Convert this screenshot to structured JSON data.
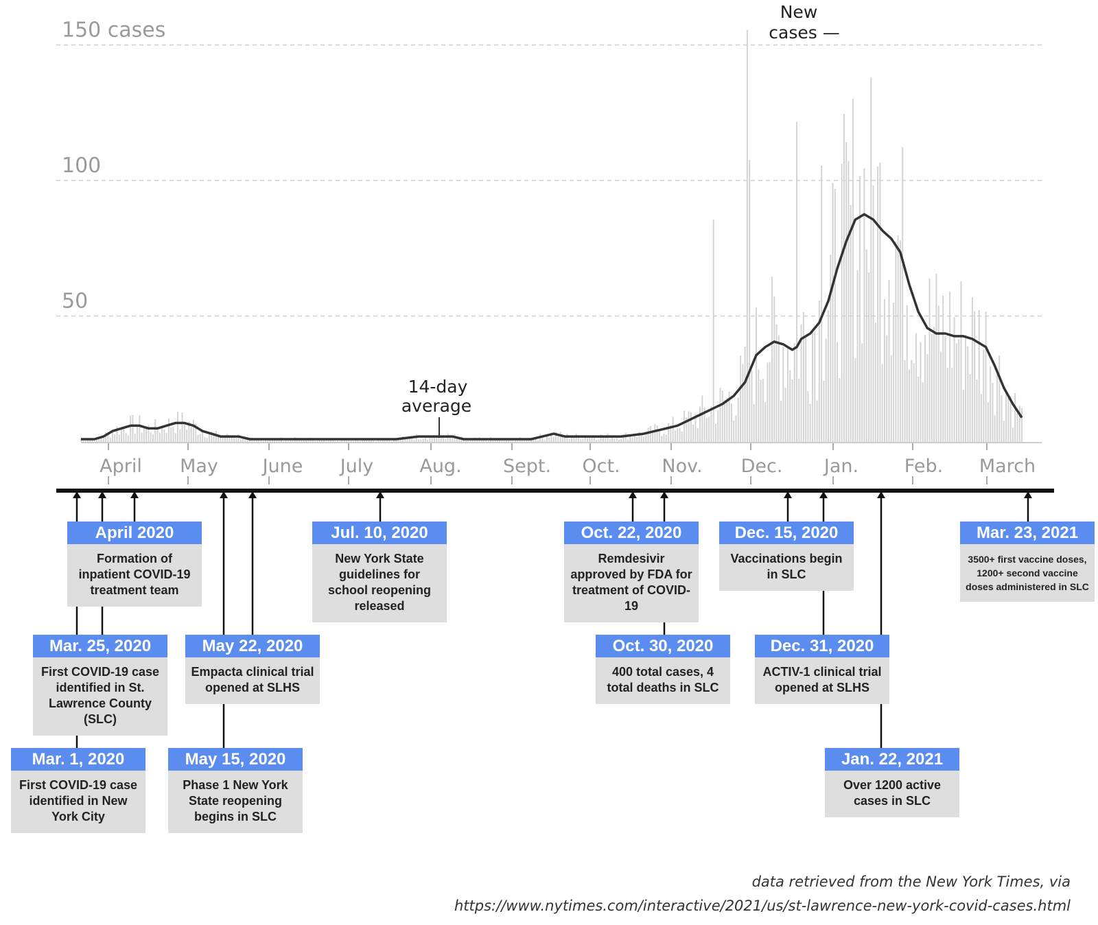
{
  "chart_data": {
    "type": "bar",
    "title": "",
    "y_axis": {
      "unit_label": "150 cases",
      "ticks": [
        {
          "value": 50,
          "label": "50"
        },
        {
          "value": 100,
          "label": "100"
        },
        {
          "value": 150,
          "label": "150 cases"
        }
      ],
      "ylim": [
        0,
        150
      ]
    },
    "x_axis": {
      "months": [
        "April",
        "May",
        "June",
        "July",
        "Aug.",
        "Sept.",
        "Oct.",
        "Nov.",
        "Dec.",
        "Jan.",
        "Feb.",
        "March"
      ],
      "start_day": 0,
      "end_day": 380
    },
    "series": [
      {
        "name": "New cases",
        "kind": "daily bars",
        "values": []
      },
      {
        "name": "14-day average",
        "kind": "line",
        "points": [
          [
            0,
            1
          ],
          [
            6,
            1
          ],
          [
            10,
            2
          ],
          [
            14,
            4
          ],
          [
            18,
            5
          ],
          [
            22,
            6
          ],
          [
            26,
            6
          ],
          [
            30,
            5
          ],
          [
            34,
            5
          ],
          [
            38,
            6
          ],
          [
            42,
            7
          ],
          [
            46,
            7
          ],
          [
            50,
            6
          ],
          [
            54,
            4
          ],
          [
            58,
            3
          ],
          [
            62,
            2
          ],
          [
            66,
            2
          ],
          [
            70,
            2
          ],
          [
            75,
            1
          ],
          [
            80,
            1
          ],
          [
            90,
            1
          ],
          [
            100,
            1
          ],
          [
            110,
            1
          ],
          [
            120,
            1
          ],
          [
            130,
            1
          ],
          [
            140,
            1
          ],
          [
            150,
            2
          ],
          [
            155,
            2
          ],
          [
            160,
            2
          ],
          [
            165,
            2
          ],
          [
            170,
            1
          ],
          [
            175,
            1
          ],
          [
            180,
            1
          ],
          [
            190,
            1
          ],
          [
            200,
            1
          ],
          [
            205,
            2
          ],
          [
            210,
            3
          ],
          [
            215,
            2
          ],
          [
            220,
            2
          ],
          [
            230,
            2
          ],
          [
            240,
            2
          ],
          [
            250,
            3
          ],
          [
            255,
            4
          ],
          [
            260,
            5
          ],
          [
            265,
            6
          ],
          [
            270,
            8
          ],
          [
            275,
            10
          ],
          [
            280,
            12
          ],
          [
            285,
            14
          ],
          [
            290,
            17
          ],
          [
            295,
            22
          ],
          [
            300,
            32
          ],
          [
            304,
            35
          ],
          [
            308,
            37
          ],
          [
            312,
            36
          ],
          [
            316,
            34
          ],
          [
            318,
            35
          ],
          [
            320,
            38
          ],
          [
            324,
            40
          ],
          [
            328,
            44
          ],
          [
            332,
            52
          ],
          [
            336,
            64
          ],
          [
            340,
            74
          ],
          [
            344,
            82
          ],
          [
            348,
            84
          ],
          [
            352,
            82
          ],
          [
            356,
            78
          ],
          [
            360,
            75
          ],
          [
            364,
            70
          ],
          [
            368,
            58
          ],
          [
            372,
            48
          ],
          [
            376,
            42
          ],
          [
            380,
            40
          ],
          [
            384,
            40
          ],
          [
            388,
            39
          ],
          [
            392,
            39
          ],
          [
            396,
            38
          ],
          [
            398,
            37
          ],
          [
            402,
            35
          ],
          [
            406,
            28
          ],
          [
            410,
            20
          ],
          [
            414,
            14
          ],
          [
            418,
            9
          ]
        ]
      }
    ],
    "annotations": [
      {
        "text": [
          "New",
          "cases —"
        ],
        "target": "peak daily bar",
        "x_day": 296,
        "y_value": 152
      },
      {
        "text": [
          "14-day",
          "average"
        ],
        "target": "average line",
        "x_day": 155,
        "y_value": 17
      }
    ]
  },
  "timeline": {
    "events": [
      {
        "date": "Mar. 1, 2020",
        "text": "First COVID-19 case identified in New York City",
        "day": -25
      },
      {
        "date": "Mar. 25, 2020",
        "text": "First COVID-19 case identified in St. Lawrence County (SLC)",
        "day": -1
      },
      {
        "date": "April 2020",
        "text": "Formation of inpatient COVID-19 treatment team",
        "day": 12
      },
      {
        "date": "May 15, 2020",
        "text": "Phase 1 New York State reopening begins in SLC",
        "day": 44
      },
      {
        "date": "May 22, 2020",
        "text": "Empacta clinical trial opened at SLHS",
        "day": 51
      },
      {
        "date": "Jul. 10, 2020",
        "text": "New York State guidelines for school reopening released",
        "day": 100
      },
      {
        "date": "Oct. 22, 2020",
        "text": "Remdesivir approved by FDA for treatment of COVID-19",
        "day": 204
      },
      {
        "date": "Oct. 30, 2020",
        "text": "400 total cases, 4 total deaths in SLC",
        "day": 212
      },
      {
        "date": "Dec. 15, 2020",
        "text": "Vaccinations begin in SLC",
        "day": 258
      },
      {
        "date": "Dec. 31, 2020",
        "text": "ACTIV-1 clinical trial opened at SLHS",
        "day": 274
      },
      {
        "date": "Jan. 22, 2021",
        "text": "Over 1200 active cases in SLC",
        "day": 296
      },
      {
        "date": "Mar. 23, 2021",
        "text": "3500+ first vaccine doses, 1200+ second vaccine doses administered in SLC",
        "day": 356
      }
    ]
  },
  "source": {
    "line1": "data retrieved from the New York Times, via",
    "line2": "https://www.nytimes.com/interactive/2021/us/st-lawrence-new-york-covid-cases.html"
  },
  "colors": {
    "header_blue": "#5a8def",
    "box_gray": "#dedede",
    "bar_gray": "#d4d4d4",
    "line_dark": "#333333"
  }
}
